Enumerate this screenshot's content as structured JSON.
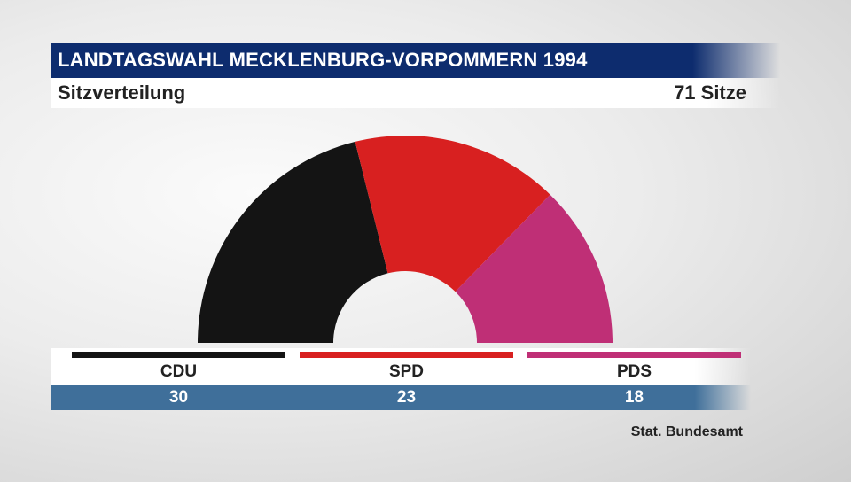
{
  "header": {
    "title": "LANDTAGSWAHL MECKLENBURG-VORPOMMERN 1994",
    "subtitle": "Sitzverteilung",
    "total_seats": "71 Sitze"
  },
  "source": "Stat. Bundesamt",
  "chart_data": {
    "type": "pie",
    "variant": "half-donut (parliament seat distribution)",
    "categories": [
      "CDU",
      "SPD",
      "PDS"
    ],
    "values": [
      30,
      23,
      18
    ],
    "colors": [
      "#141414",
      "#d82020",
      "#bf2f76"
    ],
    "total": 71,
    "legend": "below"
  }
}
